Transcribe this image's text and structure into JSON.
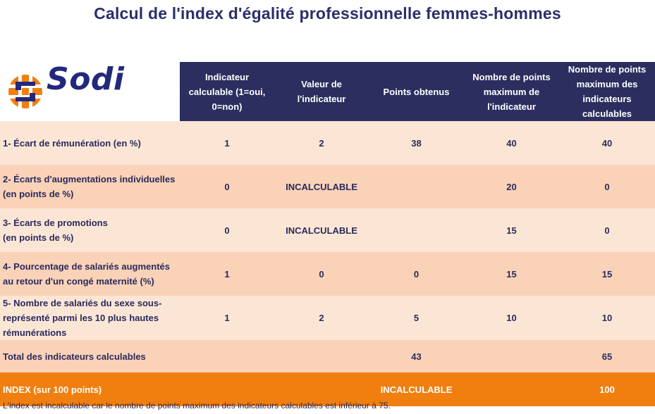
{
  "title": "Calcul de l'index d'égalité professionnelle femmes-hommes",
  "logo": {
    "brand": "Sodi"
  },
  "colors": {
    "header_bg": "#2b2e5e",
    "row_light": "#fbe6d6",
    "row_dark": "#f9d2b8",
    "index_bg": "#f07f0f",
    "logo_orange": "#f07f0f",
    "logo_navy": "#23297a"
  },
  "table": {
    "headers": [
      "",
      "Indicateur calculable (1=oui, 0=non)",
      "Valeur de l'indicateur",
      "Points obtenus",
      "Nombre de points maximum de l'indicateur",
      "Nombre de points maximum des indicateurs calculables"
    ],
    "rows": [
      {
        "label": "1- Écart de rémunération (en %)",
        "calculable": "1",
        "valeur": "2",
        "points": "38",
        "max": "40",
        "max_calc": "40"
      },
      {
        "label": "2- Écarts d'augmentations individuelles\n(en points de %)",
        "calculable": "0",
        "valeur": "INCALCULABLE",
        "points": "",
        "max": "20",
        "max_calc": "0"
      },
      {
        "label": "3- Écarts de promotions\n(en points de %)",
        "calculable": "0",
        "valeur": "INCALCULABLE",
        "points": "",
        "max": "15",
        "max_calc": "0"
      },
      {
        "label": "4- Pourcentage de salariés augmentés au retour d'un congé maternité (%)",
        "calculable": "1",
        "valeur": "0",
        "points": "0",
        "max": "15",
        "max_calc": "15"
      },
      {
        "label": "5- Nombre de salariés du sexe sous-représenté parmi les 10 plus hautes rémunérations",
        "calculable": "1",
        "valeur": "2",
        "points": "5",
        "max": "10",
        "max_calc": "10"
      }
    ],
    "total": {
      "label": "Total des indicateurs calculables",
      "points": "43",
      "max_calc": "65"
    },
    "index": {
      "label": "INDEX (sur 100 points)",
      "value": "INCALCULABLE",
      "max_calc": "100"
    }
  },
  "note": "L'index est incalculable car le nombre de points maximum des indicateurs calculables est inférieur à 75."
}
